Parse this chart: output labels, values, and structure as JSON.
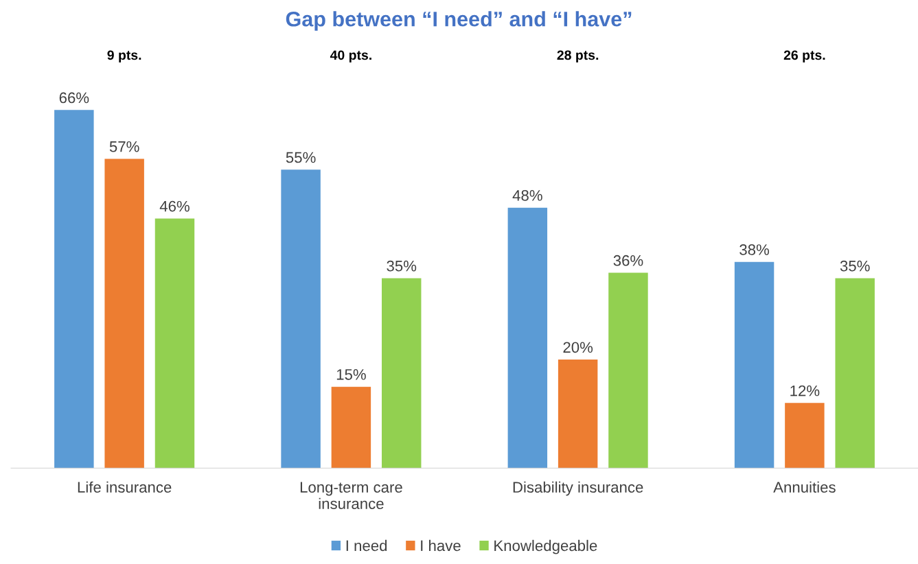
{
  "chart_data": {
    "type": "bar",
    "title": "Gap between “I need” and “I have”",
    "categories": [
      "Life insurance",
      "Long-term care\ninsurance",
      "Disability insurance",
      "Annuities"
    ],
    "series": [
      {
        "name": "I need",
        "color": "#5b9bd5",
        "values": [
          66,
          55,
          48,
          38
        ],
        "value_labels": [
          "66%",
          "55%",
          "48%",
          "38%"
        ]
      },
      {
        "name": "I have",
        "color": "#ed7d31",
        "values": [
          57,
          15,
          20,
          12
        ],
        "value_labels": [
          "57%",
          "15%",
          "20%",
          "12%"
        ]
      },
      {
        "name": "Knowledgeable",
        "color": "#92d050",
        "values": [
          46,
          35,
          36,
          35
        ],
        "value_labels": [
          "46%",
          "35%",
          "36%",
          "35%"
        ]
      }
    ],
    "annotations": [
      "9 pts.",
      "40 pts.",
      "28 pts.",
      "26 pts."
    ],
    "legend": "bottom",
    "grid": false
  }
}
